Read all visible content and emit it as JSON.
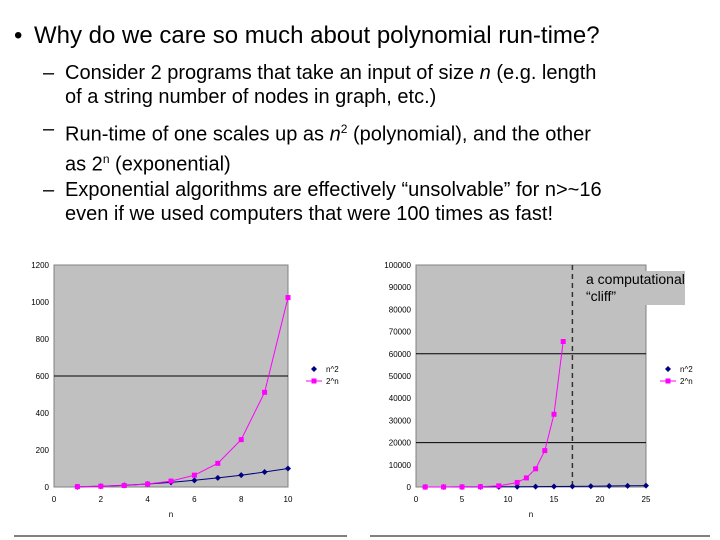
{
  "slide": {
    "bullet_main": {
      "marker": "•",
      "text": "Why do we care so much about polynomial run-time?"
    },
    "sub_marker": "–",
    "sub1": {
      "line1_pre": "Consider 2 programs that take an input of size ",
      "line1_var": "n",
      "line1_post": " (e.g. length",
      "line2": "of a string number of nodes in graph, etc.)"
    },
    "sub2": {
      "line1_pre": "Run-time of one scales up as ",
      "line1_var": "n",
      "line1_exp": "2",
      "line1_post": " (polynomial), and the other",
      "line2_pre": "as 2",
      "line2_exp": "n",
      "line2_post": " (exponential)"
    },
    "sub3": {
      "line1": "Exponential algorithms are effectively “unsolvable” for n>~16",
      "line2": "even if we used computers that were 100 times as fast!"
    },
    "annotation": {
      "line1": "a computational",
      "line2": "“cliff”"
    }
  },
  "chart_data": [
    {
      "type": "line",
      "xlabel": "n",
      "xlim": [
        0,
        10
      ],
      "ylim": [
        0,
        1200
      ],
      "xticks": [
        "0",
        "2",
        "4",
        "6",
        "8",
        "10"
      ],
      "yticks": [
        "0",
        "200",
        "400",
        "600",
        "800",
        "1000",
        "1200"
      ],
      "grid": "horizontal at 600",
      "legend_position": "right",
      "series": [
        {
          "name": "n^2",
          "color": "#000080",
          "marker": "diamond",
          "x": [
            1,
            2,
            3,
            4,
            5,
            6,
            7,
            8,
            9,
            10
          ],
          "y": [
            1,
            4,
            9,
            16,
            25,
            36,
            49,
            64,
            81,
            100
          ]
        },
        {
          "name": "2^n",
          "color": "#ff00ff",
          "marker": "square",
          "x": [
            1,
            2,
            3,
            4,
            5,
            6,
            7,
            8,
            9,
            10
          ],
          "y": [
            2,
            4,
            8,
            16,
            32,
            64,
            128,
            256,
            512,
            1024
          ]
        }
      ]
    },
    {
      "type": "line",
      "xlabel": "n",
      "xlim": [
        0,
        25
      ],
      "ylim": [
        0,
        100000
      ],
      "xticks": [
        "0",
        "5",
        "10",
        "15",
        "20",
        "25"
      ],
      "yticks": [
        "0",
        "10000",
        "20000",
        "30000",
        "40000",
        "50000",
        "60000",
        "70000",
        "80000",
        "90000",
        "100000"
      ],
      "grid": "horizontal at 20000 and 60000",
      "legend_position": "right",
      "cliff_line_x": 17,
      "series": [
        {
          "name": "n^2",
          "color": "#000080",
          "marker": "diamond",
          "x": [
            1,
            3,
            5,
            7,
            9,
            11,
            13,
            15,
            17,
            19,
            21,
            23,
            25
          ],
          "y": [
            1,
            9,
            25,
            49,
            81,
            121,
            169,
            225,
            289,
            361,
            441,
            529,
            625
          ]
        },
        {
          "name": "2^n",
          "color": "#ff00ff",
          "marker": "square",
          "x": [
            1,
            3,
            5,
            7,
            9,
            11,
            12,
            13,
            14,
            15,
            16
          ],
          "y": [
            2,
            8,
            32,
            128,
            512,
            2048,
            4096,
            8192,
            16384,
            32768,
            65536
          ]
        }
      ]
    }
  ]
}
